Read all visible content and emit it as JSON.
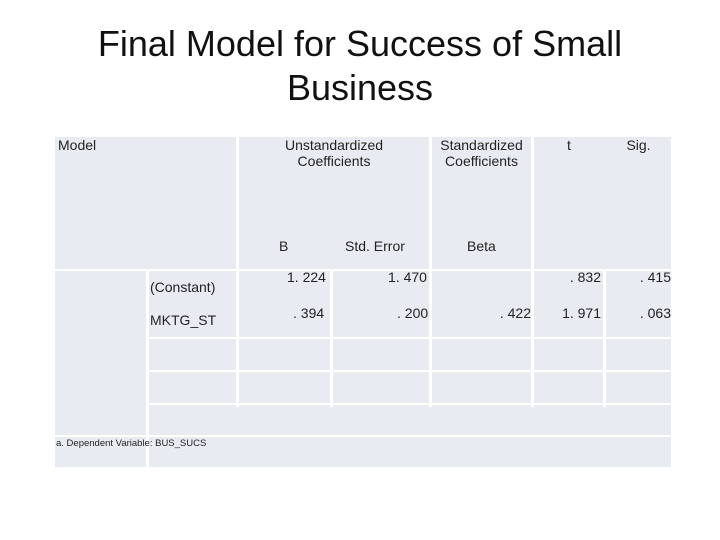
{
  "slide": {
    "title_line1": "Final Model for Success of Small",
    "title_line2": "Business"
  },
  "table": {
    "headers": {
      "model": "Model",
      "unstandardized_line1": "Unstandardized",
      "unstandardized_line2": "Coefficients",
      "standardized_line1": "Standardized",
      "standardized_line2": "Coefficients",
      "t": "t",
      "sig": "Sig."
    },
    "subheaders": {
      "b": "B",
      "std_error": "Std. Error",
      "beta": "Beta"
    },
    "rows": [
      {
        "label": "(Constant)",
        "b": "1. 224",
        "std_error": "1. 470",
        "beta": "",
        "t": ". 832",
        "sig": ". 415"
      },
      {
        "label": "MKTG_ST",
        "b": ". 394",
        "std_error": ". 200",
        "beta": ". 422",
        "t": "1. 971",
        "sig": ". 063"
      }
    ],
    "footnote": "a. Dependent Variable: BUS_SUCS"
  }
}
